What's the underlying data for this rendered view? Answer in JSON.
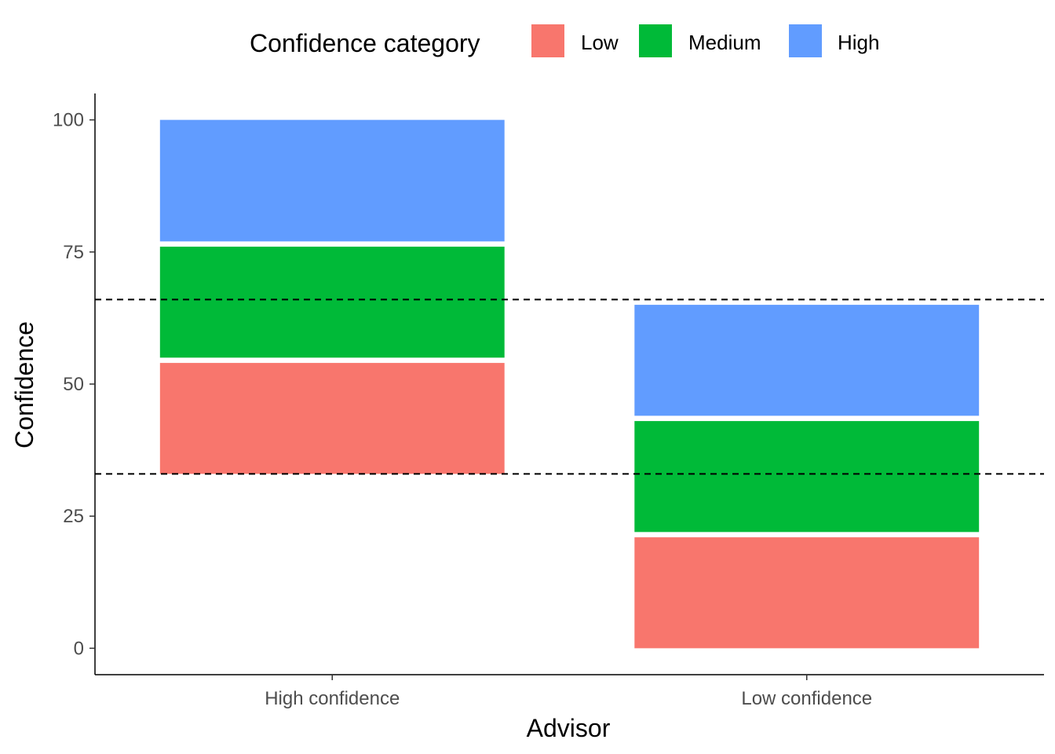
{
  "chart_data": {
    "type": "bar",
    "stacked": true,
    "title": "",
    "xlabel": "Advisor",
    "ylabel": "Confidence",
    "ylim": [
      -5,
      105
    ],
    "yticks": [
      "0",
      "25",
      "50",
      "75",
      "100"
    ],
    "grid": false,
    "legend": {
      "title": "Confidence category",
      "position": "top",
      "entries": [
        {
          "name": "Low",
          "color": "#F8766D"
        },
        {
          "name": "Medium",
          "color": "#00BA38"
        },
        {
          "name": "High",
          "color": "#619CFF"
        }
      ]
    },
    "categories": [
      "High confidence",
      "Low confidence"
    ],
    "bars": [
      {
        "category": "High confidence",
        "segments": [
          {
            "name": "Low",
            "from": 33,
            "to": 54
          },
          {
            "name": "Medium",
            "from": 55,
            "to": 76
          },
          {
            "name": "High",
            "from": 77,
            "to": 100
          }
        ]
      },
      {
        "category": "Low confidence",
        "segments": [
          {
            "name": "Low",
            "from": 0,
            "to": 21
          },
          {
            "name": "Medium",
            "from": 22,
            "to": 43
          },
          {
            "name": "High",
            "from": 44,
            "to": 65
          }
        ]
      }
    ],
    "reference_lines": [
      33,
      66
    ]
  }
}
